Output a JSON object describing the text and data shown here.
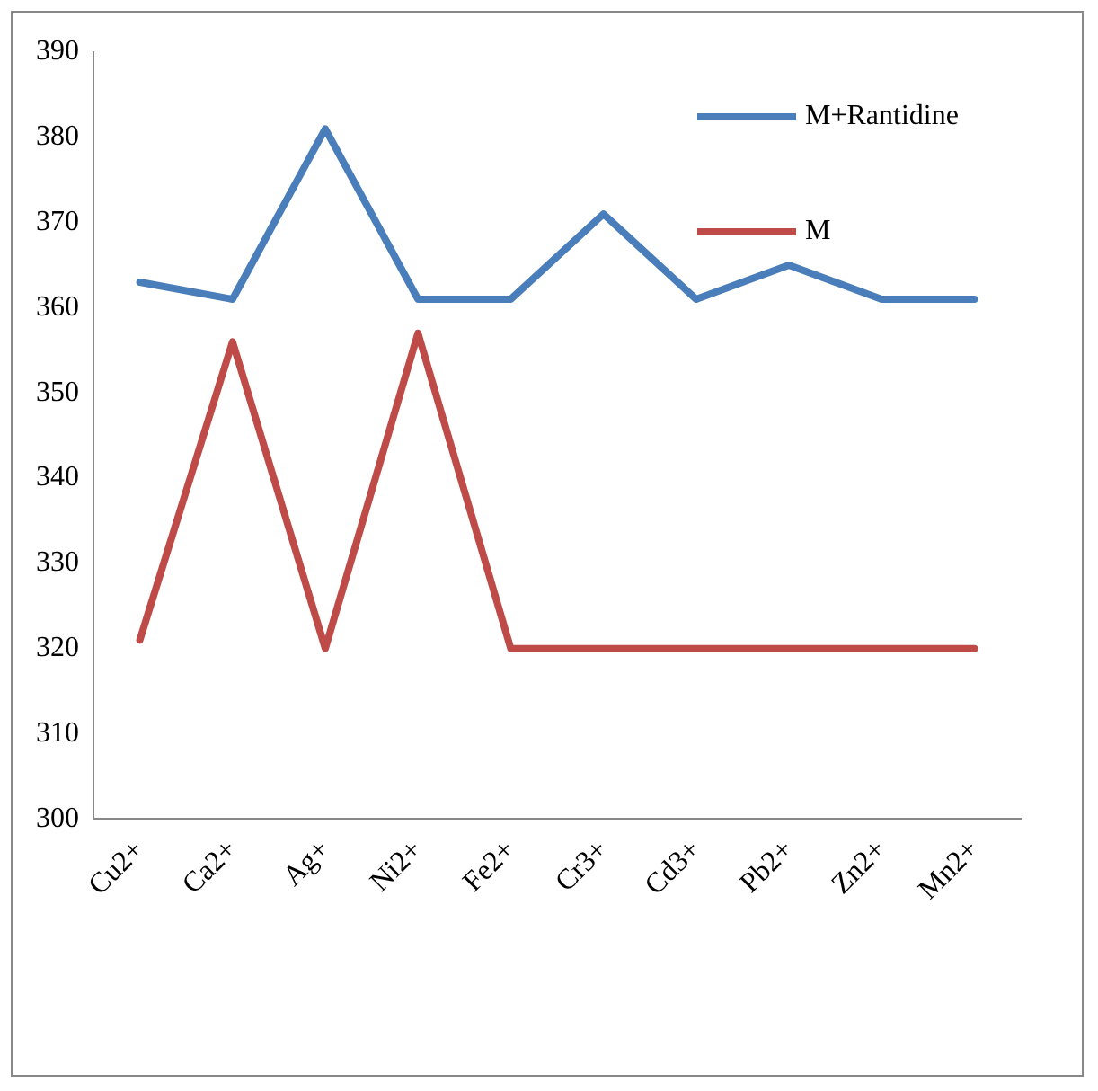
{
  "chart_data": {
    "type": "line",
    "categories": [
      "Cu2+",
      "Ca2+",
      "Ag+",
      "Ni2+",
      "Fe2+",
      "Cr3+",
      "Cd3+",
      "Pb2+",
      "Zn2+",
      "Mn2+"
    ],
    "series": [
      {
        "name": "M+Rantidine",
        "color": "#4a7ebb",
        "values": [
          363,
          361,
          381,
          361,
          361,
          371,
          361,
          365,
          361,
          361
        ]
      },
      {
        "name": "M",
        "color": "#be4b48",
        "values": [
          321,
          356,
          320,
          357,
          320,
          320,
          320,
          320,
          320,
          320
        ]
      }
    ],
    "ylim": [
      300,
      390
    ],
    "yticks": [
      300,
      310,
      320,
      330,
      340,
      350,
      360,
      370,
      380,
      390
    ],
    "grid": false,
    "legend": "top right",
    "marker": "none",
    "line_style": "solid"
  }
}
